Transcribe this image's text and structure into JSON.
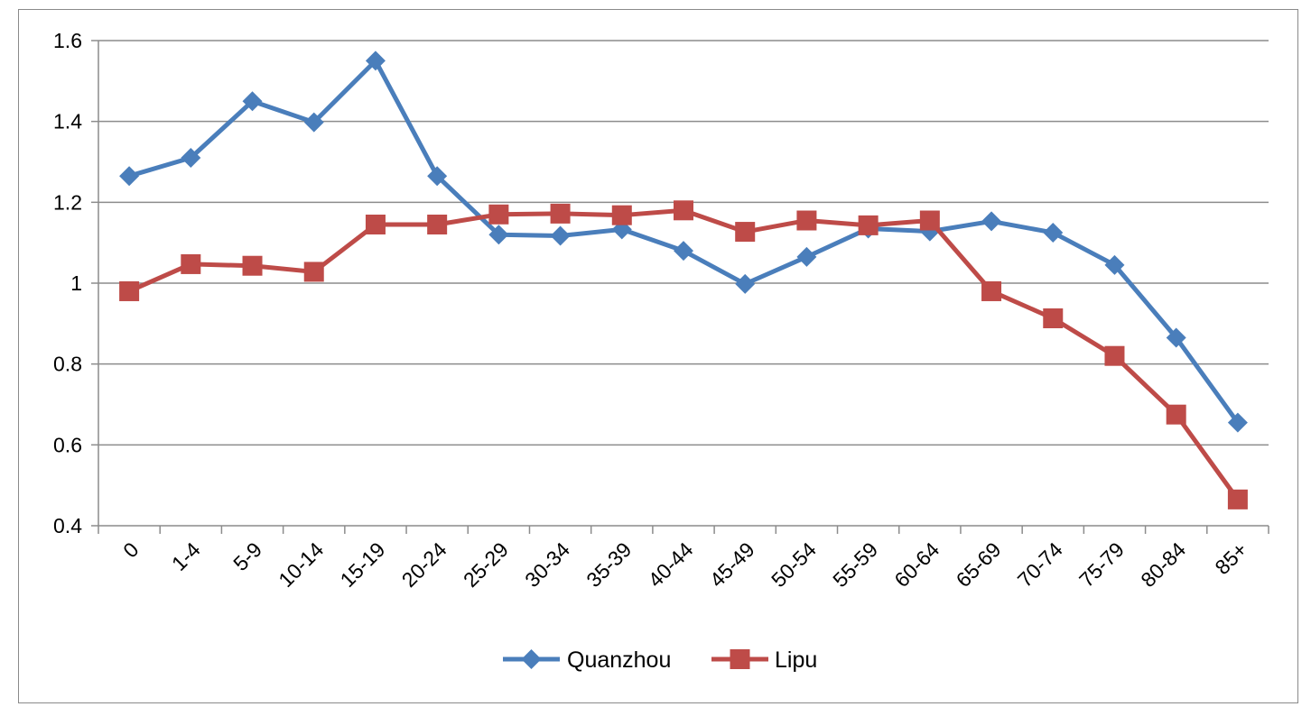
{
  "chart_data": {
    "type": "line",
    "title": "",
    "xlabel": "",
    "ylabel": "",
    "categories": [
      "0",
      "1-4",
      "5-9",
      "10-14",
      "15-19",
      "20-24",
      "25-29",
      "30-34",
      "35-39",
      "40-44",
      "45-49",
      "50-54",
      "55-59",
      "60-64",
      "65-69",
      "70-74",
      "75-79",
      "80-84",
      "85+"
    ],
    "ylim": [
      0.4,
      1.6
    ],
    "yticks": [
      "0.4",
      "0.6",
      "0.8",
      "1",
      "1.2",
      "1.4",
      "1.6"
    ],
    "ytick_values": [
      0.4,
      0.6,
      0.8,
      1.0,
      1.2,
      1.4,
      1.6
    ],
    "grid": true,
    "legend_position": "bottom",
    "series": [
      {
        "name": "Quanzhou",
        "color": "#4a7ebb",
        "marker": "diamond",
        "values": [
          1.265,
          1.31,
          1.45,
          1.398,
          1.55,
          1.265,
          1.12,
          1.117,
          1.133,
          1.08,
          0.998,
          1.065,
          1.135,
          1.128,
          1.153,
          1.125,
          1.045,
          0.865,
          0.655
        ]
      },
      {
        "name": "Lipu",
        "color": "#be4b48",
        "marker": "square",
        "values": [
          0.98,
          1.047,
          1.043,
          1.028,
          1.145,
          1.145,
          1.17,
          1.172,
          1.168,
          1.18,
          1.127,
          1.155,
          1.143,
          1.155,
          0.98,
          0.913,
          0.82,
          0.675,
          0.465
        ]
      }
    ]
  }
}
